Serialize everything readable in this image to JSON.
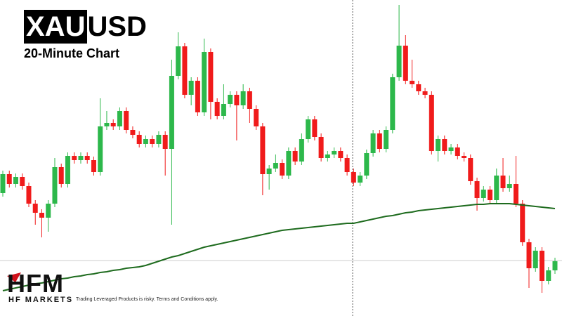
{
  "chart_data": {
    "type": "candlestick",
    "title_highlight": "XAU",
    "title_rest": "USD",
    "subtitle": "20-Minute Chart",
    "up_color": "#2db84b",
    "down_color": "#f01b1b",
    "ylim": [
      0,
      450
    ],
    "open": [
      175,
      202,
      188,
      198,
      185,
      160,
      147,
      140,
      160,
      212,
      188,
      228,
      222,
      228,
      222,
      205,
      270,
      275,
      270,
      292,
      265,
      258,
      245,
      252,
      245,
      258,
      238,
      342,
      384,
      315,
      335,
      290,
      376,
      305,
      285,
      302,
      315,
      300,
      320,
      295,
      270,
      202,
      210,
      218,
      200,
      235,
      220,
      252,
      280,
      255,
      225,
      230,
      235,
      225,
      205,
      190,
      200,
      232,
      260,
      238,
      265,
      340,
      385,
      335,
      330,
      320,
      315,
      235,
      252,
      235,
      240,
      228,
      225,
      192,
      168,
      180,
      165,
      200,
      182,
      188,
      160,
      105,
      68,
      93,
      50,
      65
    ],
    "close": [
      202,
      188,
      198,
      185,
      160,
      147,
      140,
      160,
      212,
      188,
      228,
      222,
      228,
      222,
      205,
      270,
      275,
      270,
      292,
      265,
      258,
      245,
      252,
      245,
      258,
      238,
      342,
      384,
      315,
      335,
      290,
      376,
      305,
      285,
      302,
      315,
      300,
      320,
      295,
      270,
      202,
      210,
      218,
      200,
      235,
      220,
      252,
      280,
      255,
      225,
      230,
      235,
      225,
      205,
      190,
      200,
      232,
      260,
      238,
      265,
      340,
      385,
      335,
      330,
      320,
      315,
      235,
      252,
      235,
      240,
      228,
      225,
      192,
      168,
      180,
      165,
      200,
      182,
      188,
      160,
      105,
      68,
      93,
      50,
      65,
      78
    ],
    "high": [
      207,
      207,
      203,
      203,
      190,
      165,
      152,
      165,
      225,
      217,
      233,
      233,
      233,
      233,
      227,
      310,
      292,
      280,
      297,
      297,
      270,
      263,
      257,
      257,
      263,
      263,
      365,
      404,
      389,
      340,
      340,
      395,
      381,
      310,
      330,
      320,
      320,
      330,
      325,
      300,
      275,
      215,
      230,
      223,
      240,
      240,
      260,
      285,
      285,
      260,
      235,
      240,
      240,
      230,
      210,
      205,
      237,
      265,
      265,
      270,
      345,
      443,
      400,
      365,
      335,
      325,
      320,
      257,
      257,
      245,
      245,
      233,
      230,
      197,
      185,
      185,
      210,
      225,
      200,
      228,
      165,
      110,
      98,
      98,
      70,
      83
    ],
    "low": [
      170,
      183,
      183,
      180,
      155,
      130,
      112,
      120,
      155,
      183,
      183,
      217,
      217,
      217,
      200,
      200,
      265,
      265,
      265,
      260,
      253,
      240,
      240,
      240,
      240,
      200,
      130,
      337,
      310,
      300,
      285,
      285,
      280,
      280,
      280,
      297,
      250,
      295,
      275,
      265,
      172,
      180,
      205,
      195,
      195,
      215,
      215,
      247,
      250,
      220,
      220,
      225,
      220,
      200,
      185,
      185,
      195,
      227,
      233,
      233,
      260,
      335,
      330,
      325,
      315,
      310,
      230,
      220,
      230,
      230,
      223,
      220,
      187,
      150,
      163,
      160,
      160,
      177,
      177,
      155,
      100,
      40,
      63,
      33,
      45,
      60
    ],
    "ma": {
      "color": "#1e6b1e",
      "values": [
        36,
        38,
        40,
        42,
        44,
        46,
        47,
        49,
        51,
        53,
        54,
        56,
        57,
        59,
        60,
        62,
        63,
        65,
        66,
        68,
        69,
        70,
        72,
        75,
        78,
        81,
        84,
        86,
        89,
        92,
        95,
        98,
        100,
        102,
        104,
        106,
        108,
        110,
        112,
        114,
        116,
        118,
        120,
        122,
        123,
        124,
        125,
        126,
        127,
        128,
        129,
        130,
        131,
        132,
        132,
        134,
        136,
        138,
        140,
        142,
        143,
        145,
        147,
        148,
        150,
        151,
        152,
        153,
        154,
        155,
        156,
        157,
        158,
        159,
        159,
        160,
        160,
        160,
        160,
        159,
        158,
        157,
        156,
        155,
        154,
        153
      ]
    }
  },
  "branding": {
    "logo": "HFM",
    "company": "HF MARKETS",
    "disclaimer": "Trading Leveraged Products is risky. Terms and Conditions apply."
  }
}
